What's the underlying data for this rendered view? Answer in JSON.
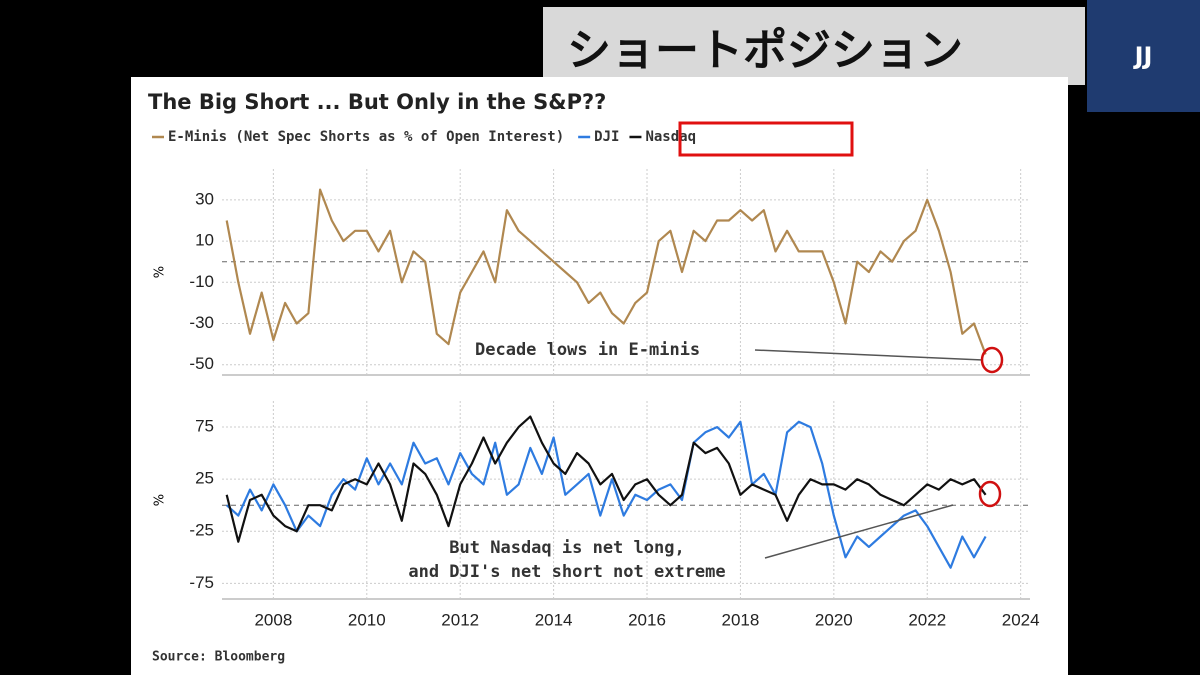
{
  "banner": {
    "title": "ショートポジション",
    "badge": "JJ"
  },
  "source": "Source: Bloomberg",
  "chart_data": [
    {
      "type": "line",
      "title": "The Big Short ... But Only in the S&P??",
      "ylabel": "%",
      "x": [
        2007,
        2007.25,
        2007.5,
        2007.75,
        2008,
        2008.25,
        2008.5,
        2008.75,
        2009,
        2009.25,
        2009.5,
        2009.75,
        2010,
        2010.25,
        2010.5,
        2010.75,
        2011,
        2011.25,
        2011.5,
        2011.75,
        2012,
        2012.25,
        2012.5,
        2012.75,
        2013,
        2013.25,
        2013.5,
        2013.75,
        2014,
        2014.25,
        2014.5,
        2014.75,
        2015,
        2015.25,
        2015.5,
        2015.75,
        2016,
        2016.25,
        2016.5,
        2016.75,
        2017,
        2017.25,
        2017.5,
        2017.75,
        2018,
        2018.25,
        2018.5,
        2018.75,
        2019,
        2019.25,
        2019.5,
        2019.75,
        2020,
        2020.25,
        2020.5,
        2020.75,
        2021,
        2021.25,
        2021.5,
        2021.75,
        2022,
        2022.25,
        2022.5,
        2022.75,
        2023,
        2023.25
      ],
      "series": [
        {
          "name": "E-Minis (Net Spec Shorts as % of Open Interest)",
          "color": "#b08850",
          "values": [
            20,
            -10,
            -35,
            -15,
            -38,
            -20,
            -30,
            -25,
            35,
            20,
            10,
            15,
            15,
            5,
            15,
            -10,
            5,
            0,
            -35,
            -40,
            -15,
            -5,
            5,
            -10,
            25,
            15,
            10,
            5,
            0,
            -5,
            -10,
            -20,
            -15,
            -25,
            -30,
            -20,
            -15,
            10,
            15,
            -5,
            15,
            10,
            20,
            20,
            25,
            20,
            25,
            5,
            15,
            5,
            5,
            5,
            -10,
            -30,
            0,
            -5,
            5,
            0,
            10,
            15,
            30,
            15,
            -5,
            -35,
            -30,
            -45
          ]
        }
      ],
      "xlim": [
        2006.9,
        2024.2
      ],
      "xticks": [
        2008,
        2010,
        2012,
        2014,
        2016,
        2018,
        2020,
        2022,
        2024
      ],
      "ylim": [
        -55,
        45
      ],
      "yticks": [
        30,
        10,
        -10,
        -30,
        -50
      ],
      "grid": true,
      "zeroline": true,
      "annotations": [
        "Decade lows in E-minis"
      ]
    },
    {
      "type": "line",
      "ylabel": "%",
      "x": [
        2007,
        2007.25,
        2007.5,
        2007.75,
        2008,
        2008.25,
        2008.5,
        2008.75,
        2009,
        2009.25,
        2009.5,
        2009.75,
        2010,
        2010.25,
        2010.5,
        2010.75,
        2011,
        2011.25,
        2011.5,
        2011.75,
        2012,
        2012.25,
        2012.5,
        2012.75,
        2013,
        2013.25,
        2013.5,
        2013.75,
        2014,
        2014.25,
        2014.5,
        2014.75,
        2015,
        2015.25,
        2015.5,
        2015.75,
        2016,
        2016.25,
        2016.5,
        2016.75,
        2017,
        2017.25,
        2017.5,
        2017.75,
        2018,
        2018.25,
        2018.5,
        2018.75,
        2019,
        2019.25,
        2019.5,
        2019.75,
        2020,
        2020.25,
        2020.5,
        2020.75,
        2021,
        2021.25,
        2021.5,
        2021.75,
        2022,
        2022.25,
        2022.5,
        2022.75,
        2023,
        2023.25
      ],
      "series": [
        {
          "name": "DJI",
          "color": "#2e7be0",
          "values": [
            0,
            -10,
            15,
            -5,
            20,
            0,
            -25,
            -10,
            -20,
            10,
            25,
            15,
            45,
            20,
            40,
            20,
            60,
            40,
            45,
            20,
            50,
            30,
            20,
            60,
            10,
            20,
            55,
            30,
            65,
            10,
            20,
            30,
            -10,
            25,
            -10,
            10,
            5,
            15,
            20,
            5,
            60,
            70,
            75,
            65,
            80,
            20,
            30,
            10,
            70,
            80,
            75,
            40,
            -10,
            -50,
            -30,
            -40,
            -30,
            -20,
            -10,
            -5,
            -20,
            -40,
            -60,
            -30,
            -50,
            -30
          ]
        },
        {
          "name": "Nasdaq",
          "color": "#111111",
          "values": [
            10,
            -35,
            5,
            10,
            -10,
            -20,
            -25,
            0,
            0,
            -5,
            20,
            25,
            20,
            40,
            20,
            -15,
            40,
            30,
            10,
            -20,
            20,
            40,
            65,
            40,
            60,
            75,
            85,
            60,
            40,
            30,
            50,
            40,
            20,
            30,
            5,
            20,
            25,
            10,
            0,
            10,
            60,
            50,
            55,
            40,
            10,
            20,
            15,
            10,
            -15,
            10,
            25,
            20,
            20,
            15,
            25,
            20,
            10,
            5,
            0,
            10,
            20,
            15,
            25,
            20,
            25,
            10
          ]
        }
      ],
      "xlim": [
        2006.9,
        2024.2
      ],
      "xticks": [
        2008,
        2010,
        2012,
        2014,
        2016,
        2018,
        2020,
        2022,
        2024
      ],
      "ylim": [
        -90,
        100
      ],
      "yticks": [
        75,
        25,
        -25,
        -75
      ],
      "grid": true,
      "zeroline": true,
      "annotations": [
        "But Nasdaq is net long,",
        "and DJI's net short not extreme"
      ]
    }
  ]
}
